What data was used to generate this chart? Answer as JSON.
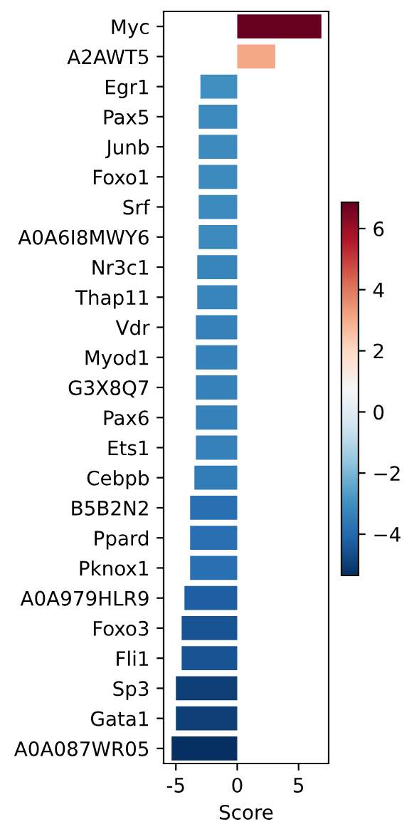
{
  "chart_data": {
    "type": "bar",
    "orientation": "horizontal",
    "xlabel": "Score",
    "categories": [
      "Myc",
      "A2AWT5",
      "Egr1",
      "Pax5",
      "Junb",
      "Foxo1",
      "Srf",
      "A0A6I8MWY6",
      "Nr3c1",
      "Thap11",
      "Vdr",
      "Myod1",
      "G3X8Q7",
      "Pax6",
      "Ets1",
      "Cebpb",
      "B5B2N2",
      "Ppard",
      "Pknox1",
      "A0A979HLR9",
      "Foxo3",
      "Fli1",
      "Sp3",
      "Gata1",
      "A0A087WR05"
    ],
    "values": [
      6.86,
      3.1,
      -3.0,
      -3.14,
      -3.14,
      -3.14,
      -3.14,
      -3.14,
      -3.26,
      -3.26,
      -3.37,
      -3.37,
      -3.37,
      -3.37,
      -3.37,
      -3.49,
      -3.84,
      -3.84,
      -3.84,
      -4.3,
      -4.53,
      -4.53,
      -5.0,
      -5.0,
      -5.35
    ],
    "xlim": [
      -6.0,
      7.45
    ],
    "xticks": [
      -5,
      0,
      5
    ],
    "clim": [
      -5.35,
      6.86
    ],
    "cticks": [
      -4,
      -2,
      0,
      2,
      4,
      6
    ]
  }
}
